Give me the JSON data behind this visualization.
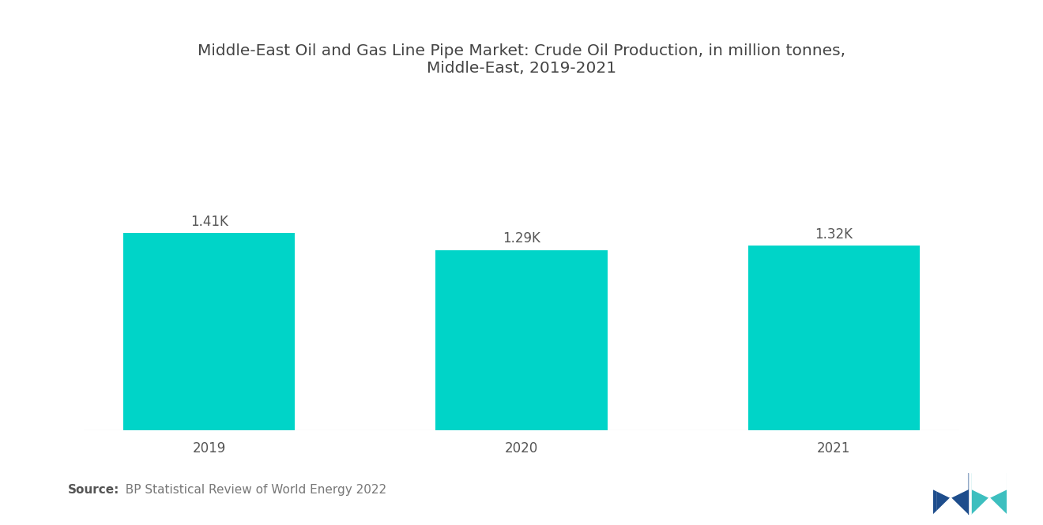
{
  "title": "Middle-East Oil and Gas Line Pipe Market: Crude Oil Production, in million tonnes,\nMiddle-East, 2019-2021",
  "categories": [
    "2019",
    "2020",
    "2021"
  ],
  "values": [
    1410,
    1290,
    1320
  ],
  "labels": [
    "1.41K",
    "1.29K",
    "1.32K"
  ],
  "bar_color": "#00D4C8",
  "background_color": "#ffffff",
  "source_bold": "Source:",
  "source_rest": "  BP Statistical Review of World Energy 2022",
  "title_fontsize": 14.5,
  "label_fontsize": 12,
  "tick_fontsize": 12,
  "source_fontsize": 11,
  "ylim": [
    0,
    2400
  ],
  "bar_width": 0.55
}
